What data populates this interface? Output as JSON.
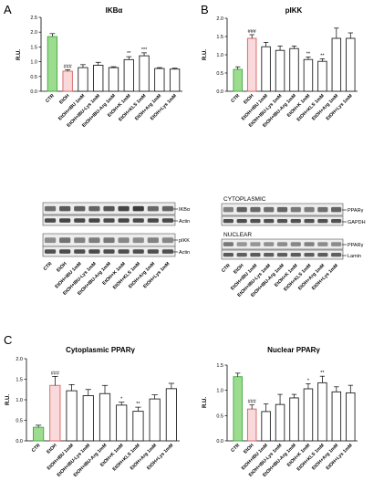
{
  "panel_letters": [
    "A",
    "B",
    "C"
  ],
  "categories": [
    "CTR",
    "EtOH",
    "EtOH+IBU 1mM",
    "EtOH+IBU-Lys 1mM",
    "EtOH+IBU-Arg 1mM",
    "EtOH+K 1mM",
    "EtOH+KLS 1mM",
    "EtOH+Arg 1mM",
    "EtOH+Lys 1mM"
  ],
  "colors": {
    "ctr_fill": "#9ddc8f",
    "ctr_stroke": "#3eaa3e",
    "etoh_fill": "#f9d9dc",
    "etoh_stroke": "#d6615a",
    "bar_fill": "#ffffff",
    "bar_stroke": "#222222"
  },
  "chart_data": [
    {
      "type": "bar",
      "title": "IKBα",
      "ylabel": "R.U.",
      "ylim": [
        0,
        2.5
      ],
      "yticks": [
        "0.0",
        "0.5",
        "1.0",
        "1.5",
        "2.0",
        "2.5"
      ],
      "categories": [
        "CTR",
        "EtOH",
        "EtOH+IBU 1mM",
        "EtOH+IBU-Lys 1mM",
        "EtOH+IBU-Arg 1mM",
        "EtOH+K 1mM",
        "EtOH+KLS 1mM",
        "EtOH+Arg 1mM",
        "EtOH+Lys 1mM"
      ],
      "values": [
        1.85,
        0.68,
        0.8,
        0.88,
        0.8,
        1.07,
        1.2,
        0.77,
        0.75
      ],
      "errors": [
        0.1,
        0.05,
        0.1,
        0.1,
        0.03,
        0.1,
        0.1,
        0.03,
        0.03
      ],
      "annotations": [
        "",
        "###",
        "",
        "",
        "",
        "**",
        "***",
        "",
        ""
      ]
    },
    {
      "type": "bar",
      "title": "pIKK",
      "ylabel": "R.U.",
      "ylim": [
        0,
        2.0
      ],
      "yticks": [
        "0.0",
        "0.5",
        "1.0",
        "1.5",
        "2.0"
      ],
      "categories": [
        "CTR",
        "EtOH",
        "EtOH+IBU 1mM",
        "EtOH+IBU-Lys 1mM",
        "EtOH+IBU-Arg 1mM",
        "EtOH+K 1mM",
        "EtOH+KLS 1mM",
        "EtOH+Arg 1mM",
        "EtOH+Lys 1mM"
      ],
      "values": [
        0.6,
        1.45,
        1.22,
        1.12,
        1.17,
        0.87,
        0.82,
        1.45,
        1.45
      ],
      "errors": [
        0.07,
        0.1,
        0.12,
        0.12,
        0.07,
        0.07,
        0.07,
        0.28,
        0.15
      ],
      "annotations": [
        "",
        "###",
        "",
        "",
        "",
        "**",
        "**",
        "",
        ""
      ]
    },
    {
      "type": "bar",
      "title": "Cytoplasmic PPARγ",
      "ylabel": "R.U.",
      "ylim": [
        0,
        2.0
      ],
      "yticks": [
        "0.0",
        "0.5",
        "1.0",
        "1.5",
        "2.0"
      ],
      "categories": [
        "CTR",
        "EtOH",
        "EtOH+IBU 1mM",
        "EtOH+IBU-Lys 1mM",
        "EtOH+IBU-Arg 1mM",
        "EtOH+K 1mM",
        "EtOH+KLS 1mM",
        "EtOH+Arg 1mM",
        "EtOH+Lys 1mM"
      ],
      "values": [
        0.33,
        1.35,
        1.22,
        1.1,
        1.15,
        0.87,
        0.72,
        1.02,
        1.27
      ],
      "errors": [
        0.05,
        0.22,
        0.15,
        0.15,
        0.2,
        0.07,
        0.1,
        0.1,
        0.13
      ],
      "annotations": [
        "",
        "###",
        "",
        "",
        "",
        "*",
        "**",
        "",
        ""
      ]
    },
    {
      "type": "bar",
      "title": "Nuclear PPARγ",
      "ylabel": "R.U.",
      "ylim": [
        0,
        1.5
      ],
      "yticks": [
        "0.0",
        "0.5",
        "1.0",
        "1.5"
      ],
      "categories": [
        "CTR",
        "EtOH",
        "EtOH+IBU 1mM",
        "EtOH+IBU-Lys 1mM",
        "EtOH+IBU-Arg 1mM",
        "EtOH+K 1mM",
        "EtOH+KLS 1mM",
        "EtOH+Arg 1mM",
        "EtOH+Lys 1mM"
      ],
      "values": [
        1.27,
        0.63,
        0.58,
        0.72,
        0.85,
        1.03,
        1.15,
        0.97,
        0.95
      ],
      "errors": [
        0.07,
        0.08,
        0.15,
        0.2,
        0.07,
        0.1,
        0.13,
        0.1,
        0.15
      ],
      "annotations": [
        "",
        "###",
        "",
        "",
        "",
        "*",
        "**",
        "",
        ""
      ]
    }
  ],
  "western": {
    "a_labels": [
      "IKBα",
      "Actin",
      "pIKK",
      "Actin"
    ],
    "b_sections": [
      "CYTOPLASMIC",
      "NUCLEAR"
    ],
    "b_labels": [
      "PPARγ",
      "GAPDH",
      "PPARγ",
      "Lamin"
    ]
  }
}
